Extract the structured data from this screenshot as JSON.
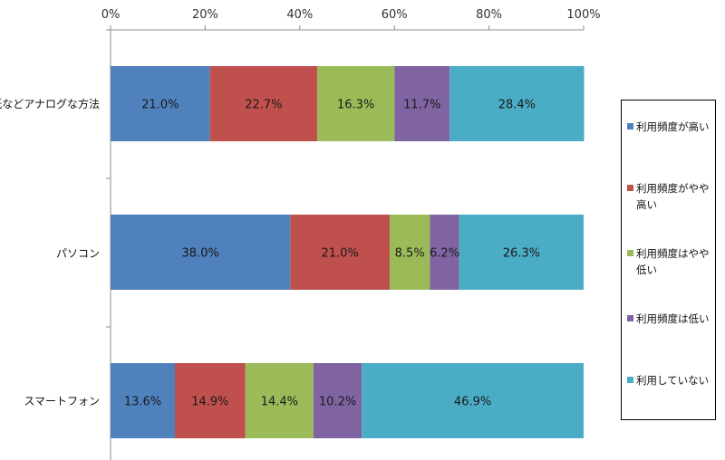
{
  "chart_data": {
    "type": "bar",
    "orientation": "horizontal",
    "stacked": "percent",
    "x_ticks": [
      "0%",
      "20%",
      "40%",
      "60%",
      "80%",
      "100%"
    ],
    "xlim": [
      0,
      100
    ],
    "categories": [
      "紙などアナログな方法",
      "パソコン",
      "スマートフォン"
    ],
    "series": [
      {
        "name": "利用頻度が高い",
        "color": "#4f81bd",
        "values": [
          21.0,
          38.0,
          13.6
        ],
        "labels": [
          "21.0%",
          "38.0%",
          "13.6%"
        ]
      },
      {
        "name": "利用頻度がやや高い",
        "color": "#c0504d",
        "values": [
          22.7,
          21.0,
          14.9
        ],
        "labels": [
          "22.7%",
          "21.0%",
          "14.9%"
        ]
      },
      {
        "name": "利用頻度はやや低い",
        "color": "#9bbb59",
        "values": [
          16.3,
          8.5,
          14.4
        ],
        "labels": [
          "16.3%",
          "8.5%",
          "14.4%"
        ]
      },
      {
        "name": "利用頻度は低い",
        "color": "#8064a2",
        "values": [
          11.7,
          6.2,
          10.2
        ],
        "labels": [
          "11.7%",
          "6.2%",
          "10.2%"
        ]
      },
      {
        "name": "利用していない",
        "color": "#4bacc6",
        "values": [
          28.4,
          26.3,
          46.9
        ],
        "labels": [
          "28.4%",
          "26.3%",
          "46.9%"
        ]
      }
    ],
    "legend_position": "right",
    "grid": false
  }
}
